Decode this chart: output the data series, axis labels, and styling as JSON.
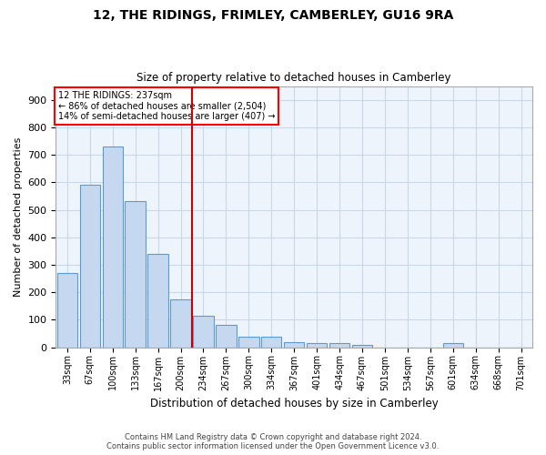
{
  "title": "12, THE RIDINGS, FRIMLEY, CAMBERLEY, GU16 9RA",
  "subtitle": "Size of property relative to detached houses in Camberley",
  "xlabel": "Distribution of detached houses by size in Camberley",
  "ylabel": "Number of detached properties",
  "footer_line1": "Contains HM Land Registry data © Crown copyright and database right 2024.",
  "footer_line2": "Contains public sector information licensed under the Open Government Licence v3.0.",
  "annotation_line1": "12 THE RIDINGS: 237sqm",
  "annotation_line2": "← 86% of detached houses are smaller (2,504)",
  "annotation_line3": "14% of semi-detached houses are larger (407) →",
  "bar_color": "#c5d8f0",
  "bar_edge_color": "#5b9bd5",
  "grid_color": "#c8d8e8",
  "background_color": "#eef4fb",
  "vline_color": "#cc0000",
  "vline_x": 5.5,
  "categories": [
    "33sqm",
    "67sqm",
    "100sqm",
    "133sqm",
    "167sqm",
    "200sqm",
    "234sqm",
    "267sqm",
    "300sqm",
    "334sqm",
    "367sqm",
    "401sqm",
    "434sqm",
    "467sqm",
    "501sqm",
    "534sqm",
    "567sqm",
    "601sqm",
    "634sqm",
    "668sqm",
    "701sqm"
  ],
  "values": [
    270,
    590,
    730,
    530,
    340,
    175,
    115,
    80,
    40,
    40,
    20,
    15,
    15,
    10,
    0,
    0,
    0,
    15,
    0,
    0,
    0
  ],
  "ylim": [
    0,
    950
  ],
  "yticks": [
    0,
    100,
    200,
    300,
    400,
    500,
    600,
    700,
    800,
    900
  ]
}
